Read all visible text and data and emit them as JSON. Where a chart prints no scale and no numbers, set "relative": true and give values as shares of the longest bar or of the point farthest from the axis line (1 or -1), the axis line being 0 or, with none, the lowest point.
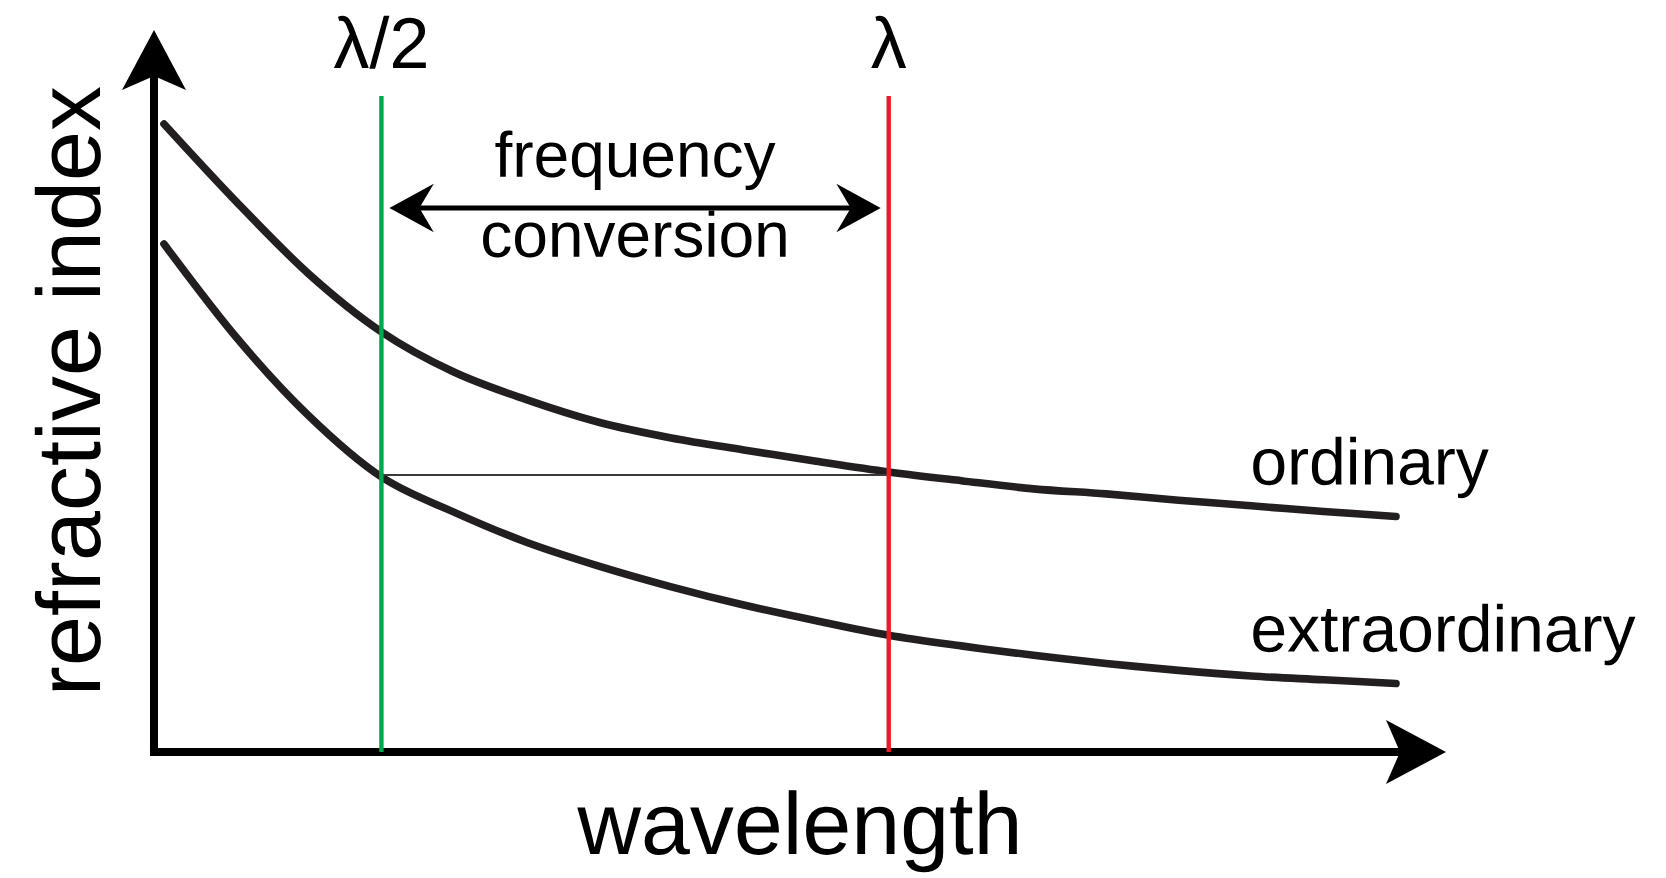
{
  "chart_data": {
    "type": "line",
    "xlabel": "wavelength",
    "ylabel": "refractive index",
    "categories": [
      null,
      null,
      null,
      null,
      null,
      null,
      null,
      null,
      null,
      null,
      null,
      null,
      null,
      null,
      null,
      null,
      null,
      null
    ],
    "relative": true,
    "series": [
      {
        "name": "ordinary",
        "color": "#231f20",
        "values": [
          1,
          0.876,
          0.761,
          0.669,
          0.605,
          0.561,
          0.525,
          0.5,
          0.481,
          0.463,
          0.446,
          0.432,
          0.419,
          0.411,
          0.401,
          0.392,
          0.383,
          0.375
        ]
      },
      {
        "name": "extraordinary",
        "color": "#231f20",
        "values": [
          0.809,
          0.66,
          0.535,
          0.438,
          0.382,
          0.334,
          0.296,
          0.263,
          0.234,
          0.209,
          0.186,
          0.169,
          0.154,
          0.141,
          0.13,
          0.121,
          0.115,
          0.109
        ]
      },
      {
        "color": "#3a3a3a",
        "values": [
          null,
          null,
          null,
          0.441,
          0.441,
          0.441,
          0.441,
          0.441,
          0.441,
          0.441,
          0.441,
          null,
          null,
          null,
          null,
          null,
          null,
          null
        ]
      }
    ],
    "annotations": [
      "λ/2",
      "λ",
      "frequency conversion"
    ]
  }
}
